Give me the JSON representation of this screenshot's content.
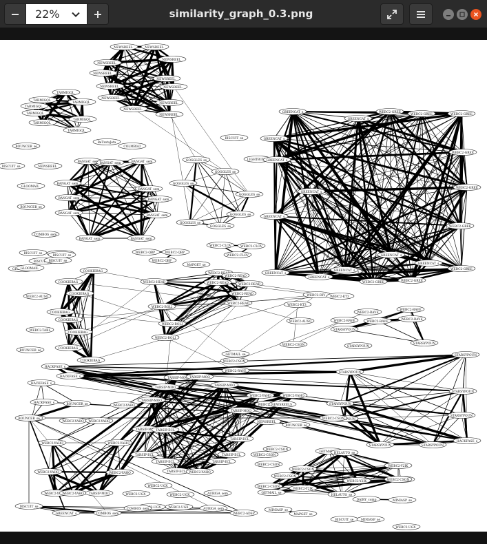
{
  "toolbar": {
    "zoom_value": "22%",
    "zoom_out_icon": "minus-icon",
    "zoom_in_icon": "plus-icon",
    "dropdown_icon": "chevron-down-icon"
  },
  "window": {
    "title": "similarity_graph_0.3.png",
    "fullscreen_icon": "fullscreen-icon",
    "menu_icon": "hamburger-menu-icon",
    "minimize_icon": "minimize-icon",
    "maximize_icon": "maximize-icon",
    "close_icon": "close-icon",
    "accent": "#e95420"
  },
  "graph": {
    "nodes": [
      {
        "label": "NEWSREEL_"
      },
      {
        "label": "NEWSREEL_"
      },
      {
        "label": "NEWSREEL_"
      },
      {
        "label": "NEWSREEL_"
      },
      {
        "label": "NEWSREEL_"
      },
      {
        "label": "NEWSREEL_"
      },
      {
        "label": "NEWSREEL_"
      },
      {
        "label": "NEWSREEL_"
      },
      {
        "label": "NEWSREEL_"
      },
      {
        "label": "NEWSREEL_"
      },
      {
        "label": "NEWSREEL_"
      },
      {
        "label": "NEWSREEL_"
      },
      {
        "label": "TARMIGQL_"
      },
      {
        "label": "TARMIGQL_"
      },
      {
        "label": "TARMIGQL_"
      },
      {
        "label": "TARMIGQL_"
      },
      {
        "label": "TARMIGQL_"
      },
      {
        "label": "TARMIGQL_"
      },
      {
        "label": "TARMIGQL_"
      },
      {
        "label": "TARMIGQL_"
      },
      {
        "label": "BOUNCER_se"
      },
      {
        "label": "DISCUIT_se"
      },
      {
        "label": "NEWSREEL_"
      },
      {
        "label": "GLOOMAIL_"
      },
      {
        "label": "BOUNCER_se"
      },
      {
        "label": "COMBOS_sem"
      },
      {
        "label": "BISCUIT_se"
      },
      {
        "label": "BISCUIT_se"
      },
      {
        "label": "BISCUIT_se"
      },
      {
        "label": "GLOOMAIL_"
      },
      {
        "label": "BANGAT_sem"
      },
      {
        "label": "BANGAT_sem"
      },
      {
        "label": "BANGAT_sem"
      },
      {
        "label": "BANGAT_sem"
      },
      {
        "label": "BANGAT_sem"
      },
      {
        "label": "BANGAT_sem"
      },
      {
        "label": "BANGAT_sem"
      },
      {
        "label": "BANGAT_sem"
      },
      {
        "label": "BANGAT_sem"
      },
      {
        "label": "BANGAT_sem"
      },
      {
        "label": "BANGAT_sem"
      },
      {
        "label": "BeTzotaJeta"
      },
      {
        "label": "COLMBIA2"
      },
      {
        "label": "BISCUIT_se"
      },
      {
        "label": "GOGGLES_se"
      },
      {
        "label": "GOGGLES_se"
      },
      {
        "label": "GOGGLES_se"
      },
      {
        "label": "GOGGLES_se"
      },
      {
        "label": "GOGGLES_se"
      },
      {
        "label": "GOGGLES_se"
      },
      {
        "label": "GOGGLES_se"
      },
      {
        "label": "LIGHTBULE_"
      },
      {
        "label": "GREENCAT_s"
      },
      {
        "label": "GREENCAT_s"
      },
      {
        "label": "GREENCAT_s"
      },
      {
        "label": "GREENCAT_s"
      },
      {
        "label": "GREENCAT_s"
      },
      {
        "label": "GREENCAT_s"
      },
      {
        "label": "GREENCAT_s"
      },
      {
        "label": "GREENCAT_s"
      },
      {
        "label": "WEBC2-GREE"
      },
      {
        "label": "WEBC2-GREE"
      },
      {
        "label": "WEBC2-GREE"
      },
      {
        "label": "WEBC2-GREE"
      },
      {
        "label": "WEBC2-GREE"
      },
      {
        "label": "WEBC2-GREE"
      },
      {
        "label": "WEBC2-GREE"
      },
      {
        "label": "WEBC2-GREE"
      },
      {
        "label": "GREENCAT_s"
      },
      {
        "label": "GREENCAT_s"
      },
      {
        "label": "GREENCAT_s"
      },
      {
        "label": "GREENCAT_s"
      },
      {
        "label": "WEBC2-GREE"
      },
      {
        "label": "WEBC2-CLOV"
      },
      {
        "label": "WEBC2-CLOV"
      },
      {
        "label": "WEBC2-CLOV"
      },
      {
        "label": "WEBC2-QBP_"
      },
      {
        "label": "WEBC2-QBP_"
      },
      {
        "label": "WEBC2-QBP_"
      },
      {
        "label": "GLOOMAIL_"
      },
      {
        "label": "BISCUIT_se"
      },
      {
        "label": "BISCUIT_se"
      },
      {
        "label": "COOKIEBAG_"
      },
      {
        "label": "COOKIEBAG_"
      },
      {
        "label": "COOKIEBAG_"
      },
      {
        "label": "COOKIEBAG_"
      },
      {
        "label": "COOKIEBAG_"
      },
      {
        "label": "COOKIEBAG_"
      },
      {
        "label": "COOKIEBAG_"
      },
      {
        "label": "COOKIEBAG_"
      },
      {
        "label": "WEBC2-AUSO"
      },
      {
        "label": "WEBC2-TABL"
      },
      {
        "label": "BOUNCER_se"
      },
      {
        "label": "MAPGET_se"
      },
      {
        "label": "WEBC2-HEAD"
      },
      {
        "label": "WEBC2-READ"
      },
      {
        "label": "WEBC2-READ"
      },
      {
        "label": "WEBC2-READ"
      },
      {
        "label": "WEBC2-READ"
      },
      {
        "label": "WEBC2-READ"
      },
      {
        "label": "WEBC2-READ"
      },
      {
        "label": "WEBC2-BOLI"
      },
      {
        "label": "WEBC2-BOLI"
      },
      {
        "label": "WEBC2-BOLI"
      },
      {
        "label": "WEBC2-KT3_"
      },
      {
        "label": "WEBC2-AUSO"
      },
      {
        "label": "WEBC2-DIV_"
      },
      {
        "label": "WEBC2-KT3_"
      },
      {
        "label": "GETMAIL_se"
      },
      {
        "label": "WEBC2-CSON"
      },
      {
        "label": "WEBC2-CSON"
      },
      {
        "label": "WEBC2-RAVE"
      },
      {
        "label": "WEBC2-RAVE"
      },
      {
        "label": "WEBC2-RAVE"
      },
      {
        "label": "WEBC2-RAVE"
      },
      {
        "label": "WEBC2-RAVE"
      },
      {
        "label": "WEBC2-RAVE"
      },
      {
        "label": "STARSYPOUN"
      },
      {
        "label": "STARSYPOUN"
      },
      {
        "label": "STARSYPOUN"
      },
      {
        "label": "STARSYPOUN"
      },
      {
        "label": "STARSYPOUN"
      },
      {
        "label": "STARSYPOUN"
      },
      {
        "label": "STARSYPOUN"
      },
      {
        "label": "STARSYPOUN"
      },
      {
        "label": "STARSYPOUN"
      },
      {
        "label": "STARSYPOUN"
      },
      {
        "label": "STARSYPOUN"
      },
      {
        "label": "HACKFASE_s"
      },
      {
        "label": "HACKFASE_s"
      },
      {
        "label": "HACKFASE_s"
      },
      {
        "label": "HACKFASE_s"
      },
      {
        "label": "HACKFASE_s"
      },
      {
        "label": "BOUNCER_se"
      },
      {
        "label": "WEBC2-ADSP"
      },
      {
        "label": "WEBC2-BOLI"
      },
      {
        "label": "WEBC2-YAHO"
      },
      {
        "label": "WEBC2-YAHO"
      },
      {
        "label": "WEBC2-YAHO"
      },
      {
        "label": "WEBC2-YAHO"
      },
      {
        "label": "WEBC2-YAHO"
      },
      {
        "label": "WEBC2-YAHO"
      },
      {
        "label": "WEBC2-YAHO"
      },
      {
        "label": "WEBC2-YAHO"
      },
      {
        "label": "WEBC2-YAHO"
      },
      {
        "label": "TARSIP-MOO"
      },
      {
        "label": "TARSIP-MOO"
      },
      {
        "label": "TARSIP-MOO"
      },
      {
        "label": "TARSIP-MOO"
      },
      {
        "label": "TARSIP-MOO"
      },
      {
        "label": "TARSIP-MOO"
      },
      {
        "label": "TARSIP-MOO"
      },
      {
        "label": "TARSIP-MOO"
      },
      {
        "label": "TARSIP-ECL"
      },
      {
        "label": "TARSIP-ECL"
      },
      {
        "label": "TARSIP-ECL"
      },
      {
        "label": "TARSIP-ECL"
      },
      {
        "label": "TARSIP-ECL"
      },
      {
        "label": "TARSIP-ECL"
      },
      {
        "label": "TARSIP-ECL"
      },
      {
        "label": "WEBC2-YAHO"
      },
      {
        "label": "WEBC2-YAHO"
      },
      {
        "label": "WEBC2-YAHO"
      },
      {
        "label": "WEBC2-YAHO"
      },
      {
        "label": "NEWSREELS_"
      },
      {
        "label": "NEWSREEL_"
      },
      {
        "label": "BOUNCER_se"
      },
      {
        "label": "WEBC2-CSON"
      },
      {
        "label": "WEBC2-CSON"
      },
      {
        "label": "WEBC2-CSON"
      },
      {
        "label": "WEBC2-CSON"
      },
      {
        "label": "WEBC2-CSON"
      },
      {
        "label": "WEBC2-CSON"
      },
      {
        "label": "WEBC2-CSON"
      },
      {
        "label": "WEBC2-Y2IK"
      },
      {
        "label": "WEBC2-Y2IK"
      },
      {
        "label": "WEBC2-Y2IK"
      },
      {
        "label": "WEBC2-Y2IK"
      },
      {
        "label": "WEBC2-CSON"
      },
      {
        "label": "GETMAIL_se"
      },
      {
        "label": "GETMAIL_se"
      },
      {
        "label": "HELAUTO_se"
      },
      {
        "label": "HELAUTO_se"
      },
      {
        "label": "DAIRY_comp"
      },
      {
        "label": "MINIASP_se"
      },
      {
        "label": "MINIASP_se"
      },
      {
        "label": "MAPGET_se"
      },
      {
        "label": "BISCUIT_se"
      },
      {
        "label": "MINIASP_se"
      },
      {
        "label": "WEBC2-UGX_"
      },
      {
        "label": "WEBC2-UGX_"
      },
      {
        "label": "WEBC2-UGX_"
      },
      {
        "label": "WEBC2-UGX_"
      },
      {
        "label": "WEBC2-UGX_"
      },
      {
        "label": "WEBC2-UGX_"
      },
      {
        "label": "COMBOS_sem"
      },
      {
        "label": "AURIGA_sem"
      },
      {
        "label": "AURIGA_sem"
      },
      {
        "label": "WEBC2-ADSP"
      },
      {
        "label": "BOUNCER_se"
      },
      {
        "label": "GREENCAT_s"
      },
      {
        "label": "COMBOS_sem"
      },
      {
        "label": "DISCUIT_se"
      }
    ]
  }
}
